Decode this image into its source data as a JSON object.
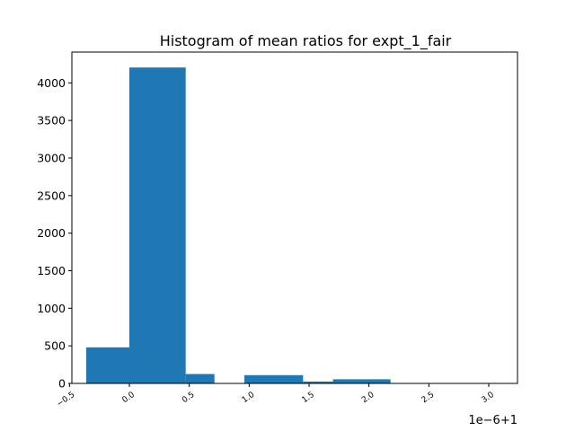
{
  "chart_data": {
    "type": "bar",
    "title": "Histogram of mean ratios for expt_1_fair",
    "xlabel": "",
    "ylabel": "",
    "x_offset_label": "1e−6+1",
    "x_unit_note": "x values in units of 1e-6, offset by +1",
    "xlim": [
      -0.48,
      3.24
    ],
    "ylim": [
      0,
      4410
    ],
    "bins": [
      {
        "x0": -0.36,
        "x1": -0.0,
        "count": 480
      },
      {
        "x0": -0.0,
        "x1": 0.47,
        "count": 4205
      },
      {
        "x0": 0.47,
        "x1": 0.71,
        "count": 125
      },
      {
        "x0": 0.71,
        "x1": 0.96,
        "count": 0
      },
      {
        "x0": 0.96,
        "x1": 1.45,
        "count": 110
      },
      {
        "x0": 1.45,
        "x1": 1.7,
        "count": 25
      },
      {
        "x0": 1.7,
        "x1": 2.18,
        "count": 55
      },
      {
        "x0": 2.18,
        "x1": 3.06,
        "count": 5
      }
    ],
    "x_ticks": [
      {
        "value": -0.5,
        "label": "−0.5"
      },
      {
        "value": 0.0,
        "label": "0.0"
      },
      {
        "value": 0.5,
        "label": "0.5"
      },
      {
        "value": 1.0,
        "label": "1.0"
      },
      {
        "value": 1.5,
        "label": "1.5"
      },
      {
        "value": 2.0,
        "label": "2.0"
      },
      {
        "value": 2.5,
        "label": "2.5"
      },
      {
        "value": 3.0,
        "label": "3.0"
      }
    ],
    "y_ticks": [
      {
        "value": 0,
        "label": "0"
      },
      {
        "value": 500,
        "label": "500"
      },
      {
        "value": 1000,
        "label": "1000"
      },
      {
        "value": 1500,
        "label": "1500"
      },
      {
        "value": 2000,
        "label": "2000"
      },
      {
        "value": 2500,
        "label": "2500"
      },
      {
        "value": 3000,
        "label": "3000"
      },
      {
        "value": 3500,
        "label": "3500"
      },
      {
        "value": 4000,
        "label": "4000"
      }
    ],
    "bar_color": "#1f77b4",
    "grid": false,
    "legend": "none"
  }
}
